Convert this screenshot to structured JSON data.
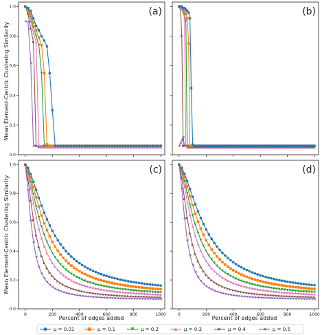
{
  "figure": {
    "ylabel_top": "Mean Element-Centric Clustering Similarity",
    "ylabel_bottom": "Mean Element-Centric Clustering Similarity",
    "xlabel_left": "Percent of edges added",
    "xlabel_right": "Percent of edges added"
  },
  "legend": [
    {
      "label": "μ = 0.01",
      "color": "#1f77b4",
      "marker": "circle"
    },
    {
      "label": "μ = 0.1",
      "color": "#ff7f0e",
      "marker": "square"
    },
    {
      "label": "μ = 0.2",
      "color": "#2ca02c",
      "marker": "triangle-down"
    },
    {
      "label": "μ = 0.3",
      "color": "#e377c2",
      "marker": "triangle-up"
    },
    {
      "label": "μ = 0.4",
      "color": "#8c564b",
      "marker": "triangle-right"
    },
    {
      "label": "μ = 0.5",
      "color": "#9467bd",
      "marker": "triangle-left"
    }
  ],
  "chart_data": [
    {
      "type": "line",
      "panel_label": "(a)",
      "xlim": [
        -50,
        1030
      ],
      "ylim": [
        0,
        1.03
      ],
      "xticks": [
        0,
        200,
        400,
        600,
        800,
        1000
      ],
      "yticks": [
        0.0,
        0.2,
        0.4,
        0.6,
        0.8,
        1.0
      ],
      "x_step": 20,
      "series": [
        {
          "name": "μ = 0.01",
          "drop_start": 0,
          "y": [
            1.0,
            0.99,
            0.97,
            0.92,
            0.87,
            0.84,
            0.8,
            0.77,
            0.73,
            0.55,
            0.3,
            0.06
          ],
          "floor": 0.06
        },
        {
          "name": "μ = 0.1",
          "drop_start": 0,
          "y": [
            1.0,
            0.99,
            0.95,
            0.89,
            0.84,
            0.79,
            0.74,
            0.55,
            0.07
          ],
          "floor": 0.06
        },
        {
          "name": "μ = 0.2",
          "drop_start": 0,
          "y": [
            1.0,
            0.98,
            0.93,
            0.86,
            0.8,
            0.74,
            0.55,
            0.06
          ],
          "floor": 0.06
        },
        {
          "name": "μ = 0.3",
          "drop_start": 0,
          "y": [
            1.0,
            0.97,
            0.9,
            0.82,
            0.76,
            0.06
          ],
          "floor": 0.05
        },
        {
          "name": "μ = 0.4",
          "drop_start": 0,
          "y": [
            1.0,
            0.95,
            0.85,
            0.76,
            0.06
          ],
          "floor": 0.05
        },
        {
          "name": "μ = 0.5",
          "drop_start": 0,
          "y": [
            0.9,
            0.9,
            0.62,
            0.06
          ],
          "floor": 0.06
        }
      ]
    },
    {
      "type": "line",
      "panel_label": "(b)",
      "xlim": [
        -50,
        1030
      ],
      "ylim": [
        0,
        1.03
      ],
      "xticks": [
        0,
        200,
        400,
        600,
        800,
        1000
      ],
      "yticks": [
        0.0,
        0.2,
        0.4,
        0.6,
        0.8,
        1.0
      ],
      "x_step": 10,
      "series": [
        {
          "name": "μ = 0.01",
          "drop_start": 0,
          "y": [
            1.0,
            1.0,
            1.0,
            0.99,
            0.99,
            0.98,
            0.97,
            0.96,
            0.92,
            0.45,
            0.07
          ],
          "floor": 0.06
        },
        {
          "name": "μ = 0.1",
          "drop_start": 0,
          "y": [
            1.0,
            1.0,
            0.99,
            0.99,
            0.97,
            0.95,
            0.92,
            0.75,
            0.06
          ],
          "floor": 0.06
        },
        {
          "name": "μ = 0.2",
          "drop_start": 0,
          "y": [
            1.0,
            1.0,
            0.99,
            0.97,
            0.95,
            0.9,
            0.06
          ],
          "floor": 0.05
        },
        {
          "name": "μ = 0.3",
          "drop_start": 0,
          "y": [
            1.0,
            0.99,
            0.98,
            0.96,
            0.92,
            0.06
          ],
          "floor": 0.05
        },
        {
          "name": "μ = 0.4",
          "drop_start": 0,
          "y": [
            1.0,
            0.99,
            0.8,
            0.06
          ],
          "floor": 0.06
        },
        {
          "name": "μ = 0.5",
          "drop_start": 0,
          "y": [
            0.06,
            0.08,
            0.1,
            0.12,
            0.06
          ],
          "floor": 0.06
        }
      ]
    },
    {
      "type": "line",
      "panel_label": "(c)",
      "xlim": [
        -50,
        1030
      ],
      "ylim": [
        0,
        1.03
      ],
      "xticks": [
        0,
        200,
        400,
        600,
        800,
        1000
      ],
      "yticks": [
        0.0,
        0.2,
        0.4,
        0.6,
        0.8,
        1.0
      ],
      "x_step": 20,
      "decay": [
        {
          "name": "μ = 0.01",
          "floor": 0.1,
          "k": 195
        },
        {
          "name": "μ = 0.1",
          "floor": 0.09,
          "k": 160
        },
        {
          "name": "μ = 0.2",
          "floor": 0.08,
          "k": 130
        },
        {
          "name": "μ = 0.3",
          "floor": 0.075,
          "k": 105
        },
        {
          "name": "μ = 0.4",
          "floor": 0.065,
          "k": 75
        },
        {
          "name": "μ = 0.5",
          "floor": 0.06,
          "k": 50
        }
      ]
    },
    {
      "type": "line",
      "panel_label": "(d)",
      "xlim": [
        -50,
        1030
      ],
      "ylim": [
        0,
        1.03
      ],
      "xticks": [
        0,
        200,
        400,
        600,
        800,
        1000
      ],
      "yticks": [
        0.0,
        0.2,
        0.4,
        0.6,
        0.8,
        1.0
      ],
      "x_step": 20,
      "decay": [
        {
          "name": "μ = 0.01",
          "floor": 0.1,
          "k": 200
        },
        {
          "name": "μ = 0.1",
          "floor": 0.09,
          "k": 165
        },
        {
          "name": "μ = 0.2",
          "floor": 0.08,
          "k": 135
        },
        {
          "name": "μ = 0.3",
          "floor": 0.075,
          "k": 110
        },
        {
          "name": "μ = 0.4",
          "floor": 0.065,
          "k": 78
        },
        {
          "name": "μ = 0.5",
          "floor": 0.06,
          "k": 52
        }
      ]
    }
  ]
}
